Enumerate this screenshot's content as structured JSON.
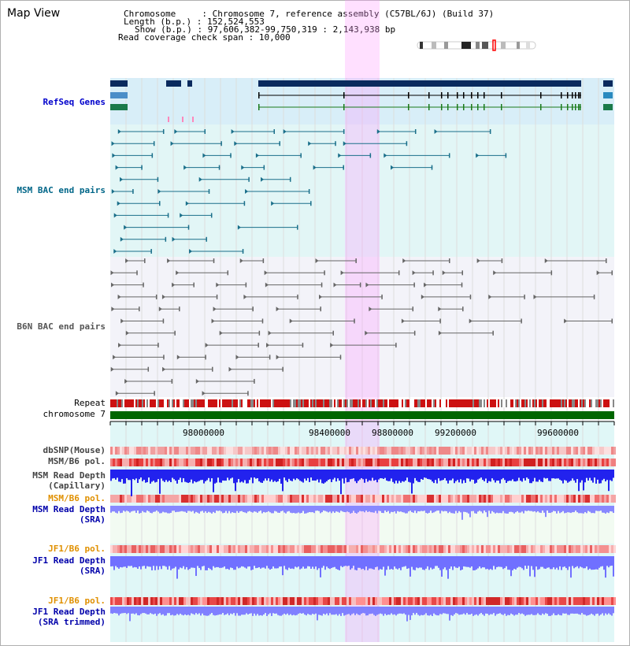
{
  "header": {
    "title": "Map View",
    "chromosome_label": "Chromosome    ",
    "chromosome_value": "Chromosome 7, reference assembly (C57BL/6J) (Build 37)",
    "length_label": "Length (b.p.)",
    "length_value": "152,524,553",
    "show_label": "Show (b.p.)",
    "show_value": "97,606,382-99,750,319 : 2,143,938 bp",
    "coverage_label": "Read coverage check span",
    "coverage_value": "10,000"
  },
  "tracks": {
    "refseq": "RefSeq Genes",
    "msm_bac": "MSM BAC end pairs",
    "b6n_bac": "B6N BAC end pairs",
    "repeat": "Repeat",
    "chromosome": "chromosome 7",
    "dbsnp": "dbSNP(Mouse)",
    "msm_b6_pol": "MSM/B6 pol.",
    "msm_depth_cap_1": "MSM Read Depth",
    "msm_depth_cap_2": "(Capillary)",
    "msm_b6_pol_2": "MSM/B6 pol.",
    "msm_depth_sra_1": "MSM Read Depth",
    "msm_depth_sra_2": "(SRA)",
    "jf1_b6_pol": "JF1/B6 pol.",
    "jf1_depth_sra_1": "JF1 Read Depth",
    "jf1_depth_sra_2": "(SRA)",
    "jf1_b6_pol_2": "JF1/B6 pol.",
    "jf1_depth_trim_1": "JF1 Read Depth",
    "jf1_depth_trim_2": "(SRA trimmed)"
  },
  "axis": {
    "ticks": [
      "98000000",
      "98400000",
      "98800000",
      "99200000",
      "99600000"
    ]
  },
  "colors": {
    "refseq_label": "#0000cc",
    "msm_label": "#006688",
    "b6n_label": "#555555",
    "orange_label": "#e09000",
    "blue_label": "#0000aa",
    "highlight": "#ff99ff",
    "chromosome_bar": "#006600"
  }
}
